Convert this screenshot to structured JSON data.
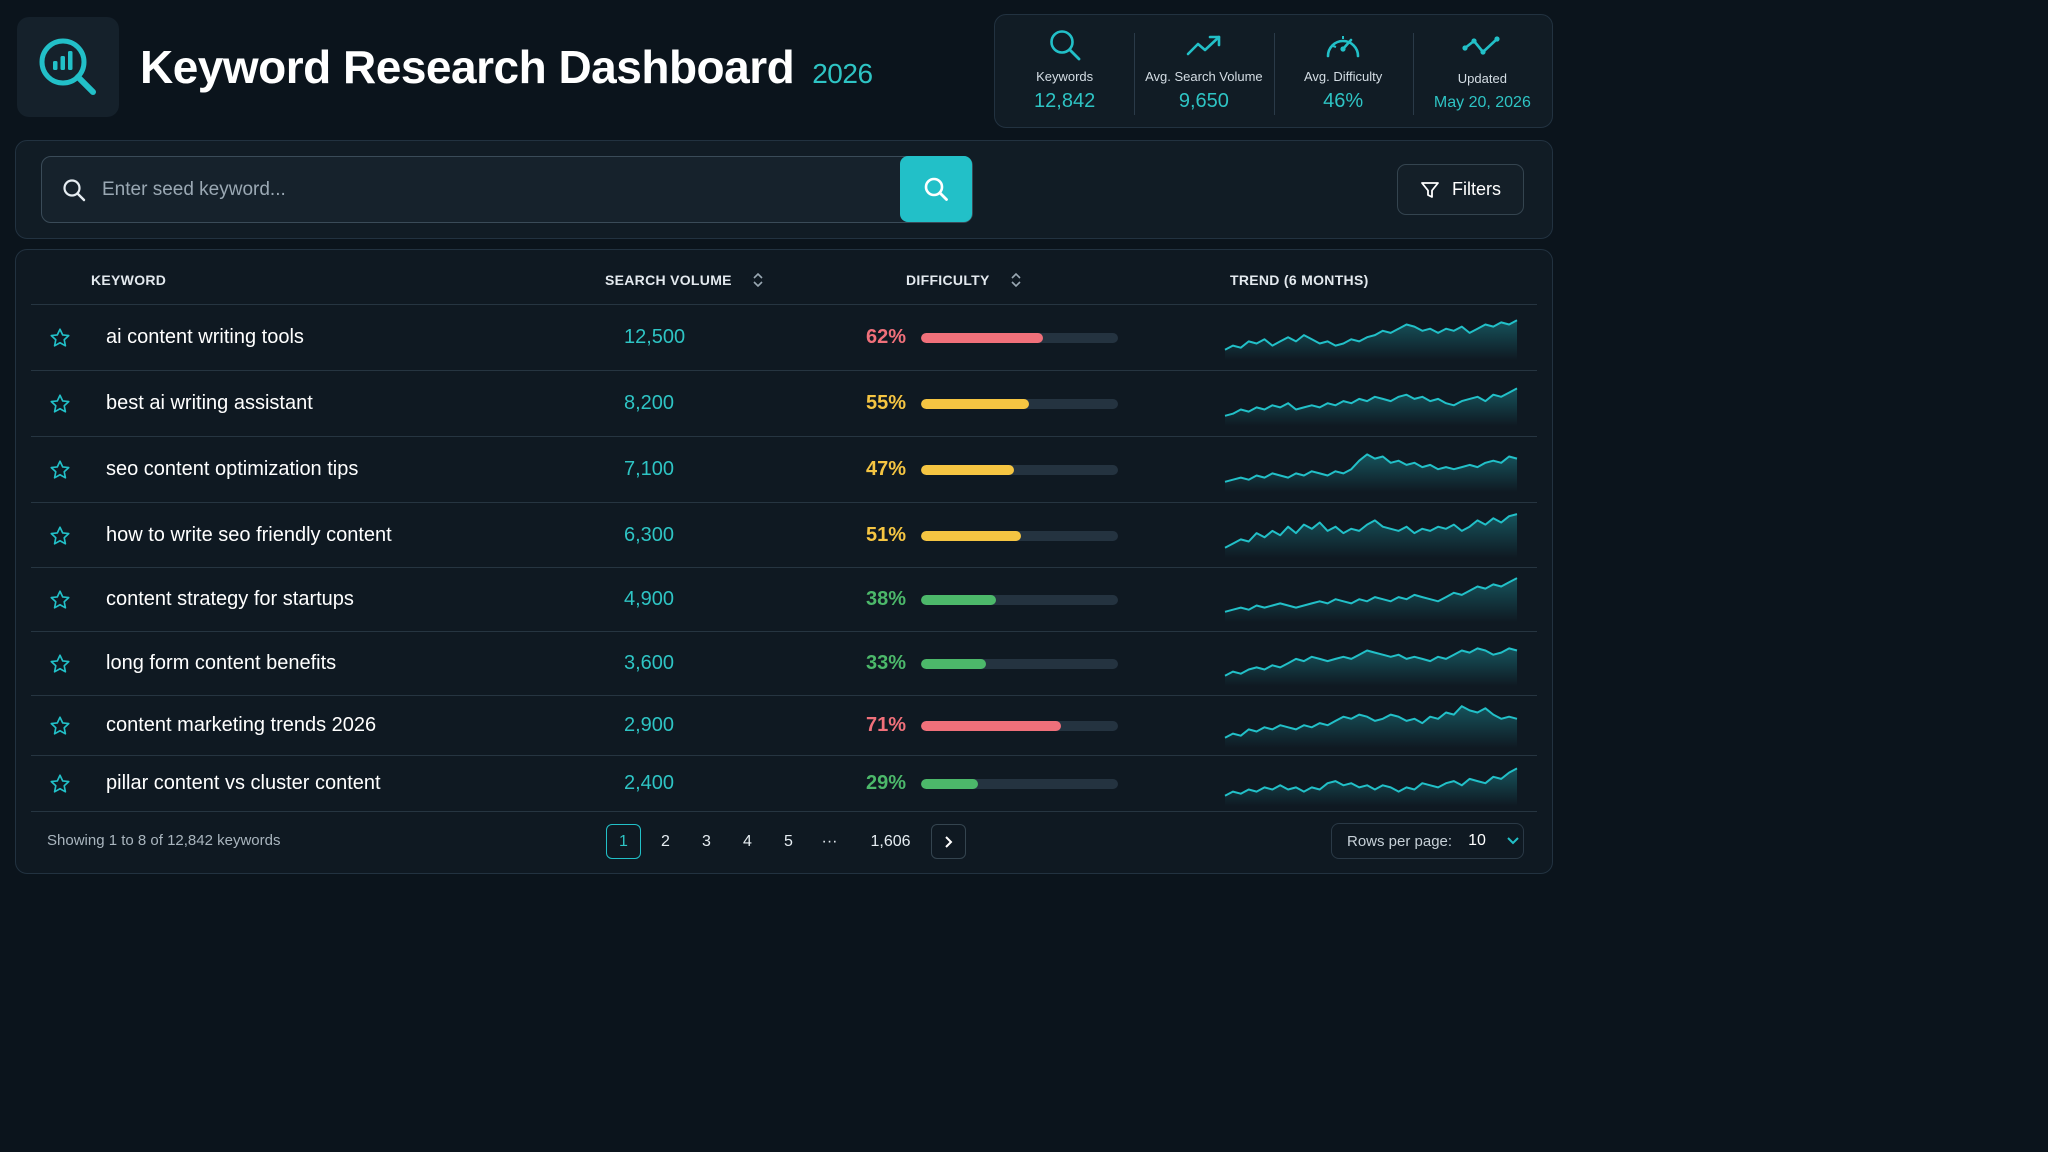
{
  "header": {
    "title": "Keyword Research Dashboard",
    "year": "2026"
  },
  "stats": [
    {
      "label": "Keywords",
      "value": "12,842",
      "icon": "search-icon"
    },
    {
      "label": "Avg. Search Volume",
      "value": "9,650",
      "icon": "trending-up-icon"
    },
    {
      "label": "Avg. Difficulty",
      "value": "46%",
      "icon": "gauge-icon"
    },
    {
      "label": "Updated",
      "value": "May 20, 2026",
      "icon": "chart-line-icon"
    }
  ],
  "search": {
    "placeholder": "Enter seed keyword...",
    "filters_label": "Filters"
  },
  "table": {
    "columns": [
      "KEYWORD",
      "SEARCH VOLUME",
      "DIFFICULTY",
      "TREND (6 MONTHS)"
    ],
    "rows": [
      {
        "keyword": "ai content writing tools",
        "volume": "12,500",
        "difficulty_label": "62%",
        "difficulty": 62,
        "level": "high",
        "trend": [
          2,
          4,
          3,
          6,
          5,
          7,
          4,
          6,
          8,
          6,
          9,
          7,
          5,
          6,
          4,
          5,
          7,
          6,
          8,
          9,
          11,
          10,
          12,
          14,
          13,
          11,
          12,
          10,
          12,
          11,
          13,
          10,
          12,
          14,
          13,
          15,
          14,
          16
        ]
      },
      {
        "keyword": "best ai writing assistant",
        "volume": "8,200",
        "difficulty_label": "55%",
        "difficulty": 55,
        "level": "medium",
        "trend": [
          2,
          3,
          5,
          4,
          6,
          5,
          7,
          6,
          8,
          5,
          6,
          7,
          6,
          8,
          7,
          9,
          8,
          10,
          9,
          11,
          10,
          9,
          11,
          12,
          10,
          11,
          9,
          10,
          8,
          7,
          9,
          10,
          11,
          9,
          12,
          11,
          13,
          15
        ]
      },
      {
        "keyword": "seo content optimization tips",
        "volume": "7,100",
        "difficulty_label": "47%",
        "difficulty": 47,
        "level": "medium",
        "trend": [
          2,
          3,
          4,
          3,
          5,
          4,
          6,
          5,
          4,
          6,
          5,
          7,
          6,
          5,
          7,
          6,
          8,
          12,
          15,
          13,
          14,
          11,
          12,
          10,
          11,
          9,
          10,
          8,
          9,
          8,
          9,
          10,
          9,
          11,
          12,
          11,
          14,
          13
        ]
      },
      {
        "keyword": "how to write seo friendly content",
        "volume": "6,300",
        "difficulty_label": "51%",
        "difficulty": 51,
        "level": "medium",
        "trend": [
          2,
          4,
          6,
          5,
          9,
          7,
          10,
          8,
          12,
          9,
          13,
          11,
          14,
          10,
          12,
          9,
          11,
          10,
          13,
          15,
          12,
          11,
          10,
          12,
          9,
          11,
          10,
          12,
          11,
          13,
          10,
          12,
          15,
          13,
          16,
          14,
          17,
          18
        ]
      },
      {
        "keyword": "content strategy for startups",
        "volume": "4,900",
        "difficulty_label": "38%",
        "difficulty": 38,
        "level": "low",
        "trend": [
          2,
          3,
          4,
          3,
          5,
          4,
          5,
          6,
          5,
          4,
          5,
          6,
          7,
          6,
          8,
          7,
          6,
          8,
          7,
          9,
          8,
          7,
          9,
          8,
          10,
          9,
          8,
          7,
          9,
          11,
          10,
          12,
          14,
          13,
          15,
          14,
          16,
          18
        ]
      },
      {
        "keyword": "long form content benefits",
        "volume": "3,600",
        "difficulty_label": "33%",
        "difficulty": 33,
        "level": "low",
        "trend": [
          2,
          4,
          3,
          5,
          6,
          5,
          7,
          6,
          8,
          10,
          9,
          11,
          10,
          9,
          10,
          11,
          10,
          12,
          14,
          13,
          12,
          11,
          12,
          10,
          11,
          10,
          9,
          11,
          10,
          12,
          14,
          13,
          15,
          14,
          12,
          13,
          15,
          14
        ]
      },
      {
        "keyword": "content marketing trends 2026",
        "volume": "2,900",
        "difficulty_label": "71%",
        "difficulty": 71,
        "level": "high",
        "trend": [
          2,
          4,
          3,
          6,
          5,
          7,
          6,
          8,
          7,
          6,
          8,
          7,
          9,
          8,
          10,
          12,
          11,
          13,
          12,
          10,
          11,
          13,
          12,
          10,
          11,
          9,
          12,
          11,
          14,
          13,
          17,
          15,
          14,
          16,
          13,
          11,
          12,
          11
        ]
      },
      {
        "keyword": "pillar content vs cluster content",
        "volume": "2,400",
        "difficulty_label": "29%",
        "difficulty": 29,
        "level": "low",
        "trend": [
          2,
          4,
          3,
          5,
          4,
          6,
          5,
          7,
          5,
          6,
          4,
          6,
          5,
          8,
          9,
          7,
          8,
          6,
          7,
          5,
          7,
          6,
          4,
          6,
          5,
          8,
          7,
          6,
          8,
          9,
          7,
          10,
          9,
          8,
          11,
          10,
          13,
          15
        ]
      }
    ]
  },
  "footer": {
    "showing": "Showing 1 to 8 of 12,842 keywords",
    "pages": [
      "1",
      "2",
      "3",
      "4",
      "5",
      "···",
      "1,606"
    ],
    "rows_per_page_label": "Rows per page:",
    "rows_per_page_value": "10"
  },
  "colors": {
    "accent": "#22c0c8",
    "high": "#f0707a",
    "medium": "#f5c542",
    "low": "#4cb86a"
  }
}
